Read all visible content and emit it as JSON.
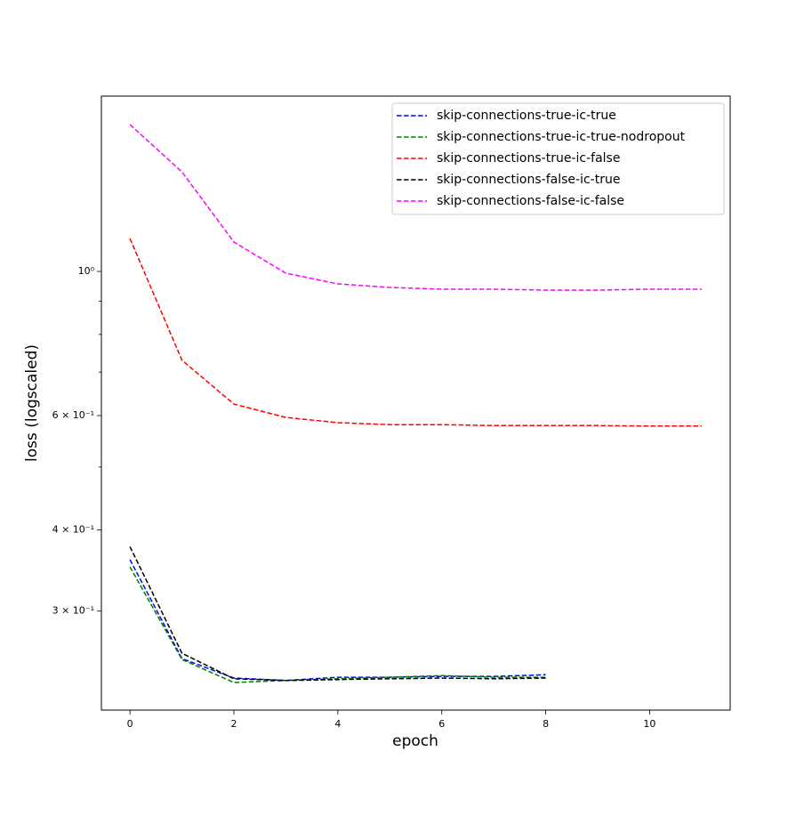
{
  "chart_data": {
    "type": "line",
    "xlabel": "epoch",
    "ylabel": "loss (logscaled)",
    "x": [
      0,
      1,
      2,
      3,
      4,
      5,
      6,
      7,
      8,
      9,
      10,
      11
    ],
    "series": [
      {
        "name": "skip-connections-true-ic-true",
        "color": "#0000ff",
        "values": [
          0.36,
          0.2535,
          0.2366,
          0.2346,
          0.2373,
          0.2373,
          0.238,
          0.238,
          0.2394,
          null,
          null,
          null
        ]
      },
      {
        "name": "skip-connections-true-ic-true-nodropout",
        "color": "#008000",
        "values": [
          0.351,
          0.2527,
          0.2329,
          0.2346,
          0.236,
          0.2373,
          0.2387,
          0.2373,
          0.2373,
          null,
          null,
          null
        ]
      },
      {
        "name": "skip-connections-true-ic-false",
        "color": "#ff0000",
        "values": [
          1.124,
          0.73,
          0.625,
          0.596,
          0.585,
          0.581,
          0.581,
          0.579,
          0.579,
          0.579,
          0.578,
          0.578
        ]
      },
      {
        "name": "skip-connections-false-ic-true",
        "color": "#000000",
        "values": [
          0.377,
          0.2584,
          0.236,
          0.2346,
          0.2353,
          0.236,
          0.2366,
          0.236,
          0.2366,
          null,
          null,
          null
        ]
      },
      {
        "name": "skip-connections-false-ic-false",
        "color": "#ff00ff",
        "values": [
          1.683,
          1.423,
          1.11,
          0.994,
          0.957,
          0.945,
          0.939,
          0.939,
          0.936,
          0.936,
          0.939,
          0.939
        ]
      }
    ],
    "xlim": [
      -0.55,
      11.55
    ],
    "xticks": [
      0,
      2,
      4,
      6,
      8,
      10
    ],
    "ylim": [
      0.2112,
      1.862
    ],
    "ylog": true,
    "yticks": [
      {
        "value": 0.3,
        "label": "3 × 10⁻¹"
      },
      {
        "value": 0.4,
        "label": "4 × 10⁻¹"
      },
      {
        "value": 0.6,
        "label": "6 × 10⁻¹"
      },
      {
        "value": 1,
        "label": "10⁰"
      }
    ],
    "yminor": [
      0.5,
      0.7,
      0.8,
      0.9
    ],
    "legend": "upper right",
    "grid": false
  }
}
